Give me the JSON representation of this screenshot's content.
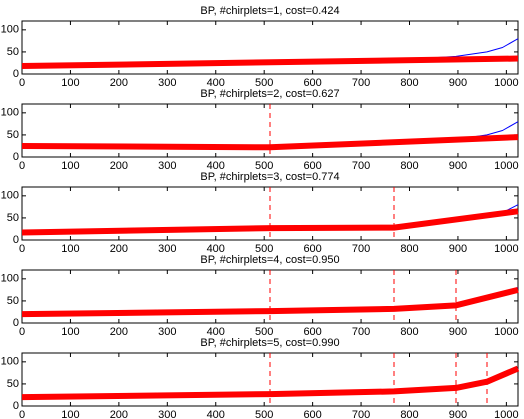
{
  "chart_data": [
    {
      "type": "line",
      "title": "BP, #chirplets=1, cost=0.424",
      "xlim": [
        0,
        1024
      ],
      "ylim": [
        0,
        120
      ],
      "xticks": [
        0,
        100,
        200,
        300,
        400,
        500,
        600,
        700,
        800,
        900,
        1000
      ],
      "yticks": [
        0,
        50,
        100
      ],
      "breakpoints": [],
      "series": [
        {
          "color": "#0000ff",
          "width": 1,
          "x": [
            0,
            128,
            256,
            384,
            512,
            640,
            768,
            896,
            960,
            992,
            1024
          ],
          "values": [
            15,
            17,
            19,
            21,
            24,
            27,
            31,
            40,
            50,
            60,
            80
          ]
        },
        {
          "color": "#ff0000",
          "width": 6,
          "x": [
            0,
            1024
          ],
          "values": [
            18,
            35
          ]
        }
      ]
    },
    {
      "type": "line",
      "title": "BP, #chirplets=2, cost=0.627",
      "xlim": [
        0,
        1024
      ],
      "ylim": [
        0,
        120
      ],
      "xticks": [
        0,
        100,
        200,
        300,
        400,
        500,
        600,
        700,
        800,
        900,
        1000
      ],
      "yticks": [
        0,
        50,
        100
      ],
      "breakpoints": [
        512
      ],
      "series": [
        {
          "color": "#0000ff",
          "width": 1,
          "x": [
            0,
            128,
            256,
            384,
            512,
            640,
            768,
            896,
            960,
            992,
            1024
          ],
          "values": [
            25,
            24,
            23,
            22,
            22,
            27,
            33,
            40,
            50,
            60,
            80
          ]
        },
        {
          "color": "#ff0000",
          "width": 6,
          "x": [
            0,
            512,
            1024
          ],
          "values": [
            25,
            22,
            45
          ]
        }
      ]
    },
    {
      "type": "line",
      "title": "BP, #chirplets=3, cost=0.774",
      "xlim": [
        0,
        1024
      ],
      "ylim": [
        0,
        120
      ],
      "xticks": [
        0,
        100,
        200,
        300,
        400,
        500,
        600,
        700,
        800,
        900,
        1000
      ],
      "yticks": [
        0,
        50,
        100
      ],
      "breakpoints": [
        512,
        768
      ],
      "series": [
        {
          "color": "#0000ff",
          "width": 1,
          "x": [
            0,
            128,
            256,
            384,
            512,
            640,
            768,
            896,
            960,
            992,
            1024
          ],
          "values": [
            17,
            19,
            22,
            25,
            27,
            28,
            28,
            45,
            55,
            62,
            80
          ]
        },
        {
          "color": "#ff0000",
          "width": 6,
          "x": [
            0,
            512,
            768,
            1024
          ],
          "values": [
            17,
            27,
            28,
            65
          ]
        }
      ]
    },
    {
      "type": "line",
      "title": "BP, #chirplets=4, cost=0.950",
      "xlim": [
        0,
        1024
      ],
      "ylim": [
        0,
        120
      ],
      "xticks": [
        0,
        100,
        200,
        300,
        400,
        500,
        600,
        700,
        800,
        900,
        1000
      ],
      "yticks": [
        0,
        50,
        100
      ],
      "breakpoints": [
        512,
        768,
        896
      ],
      "series": [
        {
          "color": "#0000ff",
          "width": 1,
          "x": [
            0,
            128,
            256,
            384,
            512,
            640,
            768,
            896,
            960,
            992,
            1024
          ],
          "values": [
            20,
            22,
            24,
            25,
            27,
            29,
            32,
            42,
            55,
            65,
            80
          ]
        },
        {
          "color": "#ff0000",
          "width": 6,
          "x": [
            0,
            512,
            768,
            896,
            1024
          ],
          "values": [
            20,
            27,
            32,
            40,
            75
          ]
        }
      ]
    },
    {
      "type": "line",
      "title": "BP, #chirplets=5, cost=0.990",
      "xlim": [
        0,
        1024
      ],
      "ylim": [
        0,
        120
      ],
      "xticks": [
        0,
        100,
        200,
        300,
        400,
        500,
        600,
        700,
        800,
        900,
        1000
      ],
      "yticks": [
        0,
        50,
        100
      ],
      "breakpoints": [
        512,
        768,
        896,
        960
      ],
      "series": [
        {
          "color": "#0000ff",
          "width": 1,
          "x": [
            0,
            128,
            256,
            384,
            512,
            640,
            768,
            896,
            960,
            992,
            1024
          ],
          "values": [
            20,
            22,
            24,
            25,
            27,
            30,
            33,
            41,
            55,
            68,
            85
          ]
        },
        {
          "color": "#ff0000",
          "width": 6,
          "x": [
            0,
            512,
            768,
            896,
            960,
            1024
          ],
          "values": [
            20,
            27,
            33,
            41,
            55,
            85
          ]
        }
      ]
    }
  ]
}
